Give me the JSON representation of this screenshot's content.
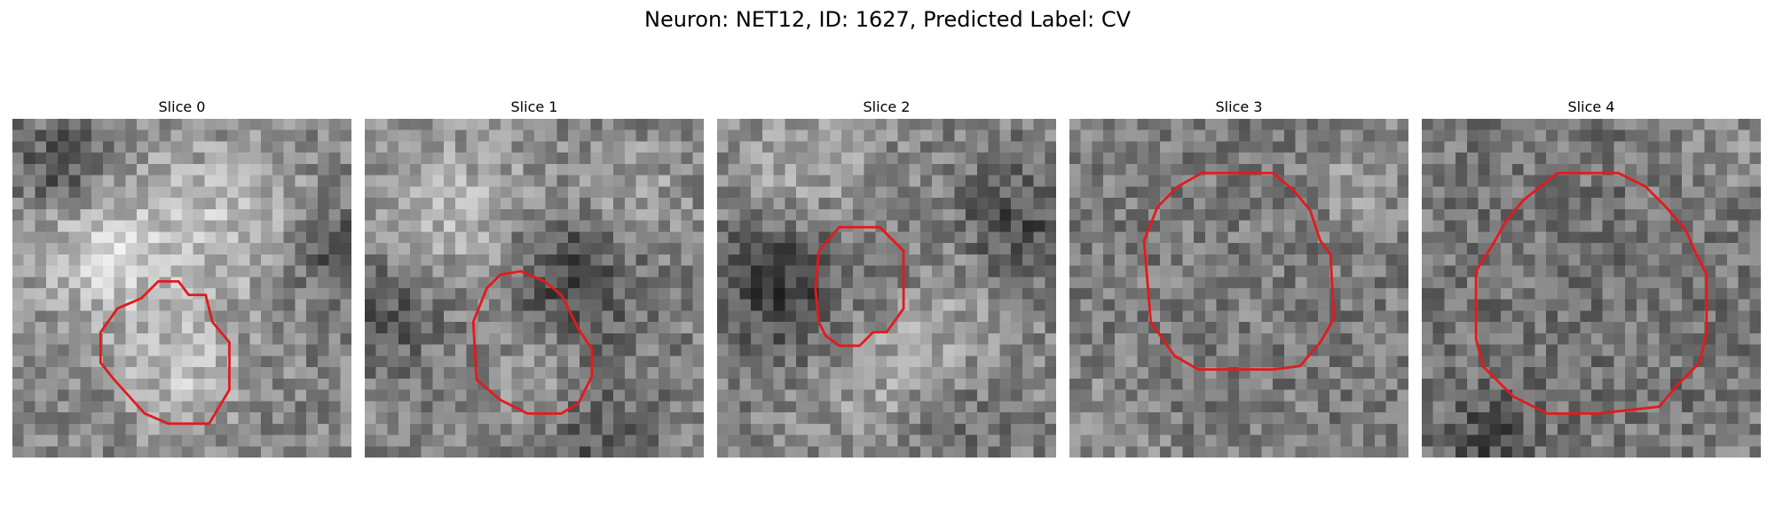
{
  "figure": {
    "title": "Neuron: NET12, ID: 1627, Predicted Label: CV"
  },
  "panels": [
    {
      "label": "Slice 0",
      "seed": 11,
      "blobs": [
        [
          0.25,
          0.4,
          0.16,
          70
        ],
        [
          0.62,
          0.3,
          0.18,
          55
        ],
        [
          0.5,
          0.75,
          0.13,
          60
        ],
        [
          0.15,
          0.15,
          0.1,
          -60
        ],
        [
          0.95,
          0.4,
          0.1,
          -50
        ]
      ],
      "contour": [
        [
          0.43,
          0.48
        ],
        [
          0.49,
          0.48
        ],
        [
          0.52,
          0.52
        ],
        [
          0.57,
          0.52
        ],
        [
          0.59,
          0.6
        ],
        [
          0.64,
          0.66
        ],
        [
          0.64,
          0.8
        ],
        [
          0.58,
          0.9
        ],
        [
          0.46,
          0.9
        ],
        [
          0.39,
          0.87
        ],
        [
          0.3,
          0.77
        ],
        [
          0.26,
          0.72
        ],
        [
          0.26,
          0.63
        ],
        [
          0.31,
          0.56
        ],
        [
          0.38,
          0.53
        ]
      ]
    },
    {
      "label": "Slice 1",
      "seed": 23,
      "blobs": [
        [
          0.3,
          0.3,
          0.18,
          55
        ],
        [
          0.78,
          0.25,
          0.12,
          40
        ],
        [
          0.6,
          0.45,
          0.16,
          -70
        ],
        [
          0.08,
          0.55,
          0.12,
          -50
        ],
        [
          0.5,
          0.75,
          0.1,
          35
        ],
        [
          0.7,
          0.95,
          0.12,
          -40
        ]
      ],
      "contour": [
        [
          0.4,
          0.46
        ],
        [
          0.46,
          0.45
        ],
        [
          0.53,
          0.48
        ],
        [
          0.58,
          0.52
        ],
        [
          0.63,
          0.62
        ],
        [
          0.67,
          0.68
        ],
        [
          0.67,
          0.76
        ],
        [
          0.63,
          0.84
        ],
        [
          0.58,
          0.87
        ],
        [
          0.48,
          0.87
        ],
        [
          0.4,
          0.83
        ],
        [
          0.33,
          0.77
        ],
        [
          0.32,
          0.6
        ],
        [
          0.36,
          0.5
        ]
      ]
    },
    {
      "label": "Slice 2",
      "seed": 37,
      "blobs": [
        [
          0.2,
          0.5,
          0.15,
          -75
        ],
        [
          0.55,
          0.7,
          0.2,
          45
        ],
        [
          0.88,
          0.3,
          0.12,
          -55
        ],
        [
          0.25,
          0.15,
          0.14,
          40
        ],
        [
          0.7,
          0.9,
          0.12,
          -40
        ],
        [
          0.5,
          0.45,
          0.08,
          -30
        ]
      ],
      "contour": [
        [
          0.36,
          0.32
        ],
        [
          0.48,
          0.32
        ],
        [
          0.55,
          0.39
        ],
        [
          0.55,
          0.56
        ],
        [
          0.5,
          0.63
        ],
        [
          0.46,
          0.63
        ],
        [
          0.42,
          0.67
        ],
        [
          0.36,
          0.67
        ],
        [
          0.32,
          0.64
        ],
        [
          0.3,
          0.6
        ],
        [
          0.29,
          0.5
        ],
        [
          0.3,
          0.39
        ]
      ]
    },
    {
      "label": "Slice 3",
      "seed": 53,
      "blobs": [
        [
          0.45,
          0.5,
          0.25,
          30
        ],
        [
          0.45,
          0.5,
          0.33,
          -35
        ],
        [
          0.85,
          0.2,
          0.1,
          30
        ],
        [
          0.1,
          0.9,
          0.12,
          25
        ]
      ],
      "contour": [
        [
          0.39,
          0.16
        ],
        [
          0.6,
          0.16
        ],
        [
          0.66,
          0.21
        ],
        [
          0.71,
          0.27
        ],
        [
          0.74,
          0.36
        ],
        [
          0.77,
          0.4
        ],
        [
          0.78,
          0.59
        ],
        [
          0.74,
          0.66
        ],
        [
          0.68,
          0.73
        ],
        [
          0.6,
          0.74
        ],
        [
          0.38,
          0.74
        ],
        [
          0.31,
          0.7
        ],
        [
          0.24,
          0.6
        ],
        [
          0.22,
          0.36
        ],
        [
          0.26,
          0.26
        ],
        [
          0.32,
          0.2
        ]
      ]
    },
    {
      "label": "Slice 4",
      "seed": 71,
      "blobs": [
        [
          0.5,
          0.5,
          0.3,
          15
        ],
        [
          0.5,
          0.5,
          0.42,
          -30
        ],
        [
          0.2,
          0.95,
          0.1,
          -45
        ],
        [
          0.9,
          0.1,
          0.1,
          25
        ]
      ],
      "contour": [
        [
          0.4,
          0.16
        ],
        [
          0.58,
          0.16
        ],
        [
          0.66,
          0.2
        ],
        [
          0.72,
          0.26
        ],
        [
          0.78,
          0.33
        ],
        [
          0.8,
          0.38
        ],
        [
          0.84,
          0.46
        ],
        [
          0.84,
          0.63
        ],
        [
          0.82,
          0.72
        ],
        [
          0.76,
          0.78
        ],
        [
          0.7,
          0.85
        ],
        [
          0.52,
          0.87
        ],
        [
          0.37,
          0.87
        ],
        [
          0.27,
          0.82
        ],
        [
          0.18,
          0.73
        ],
        [
          0.16,
          0.65
        ],
        [
          0.16,
          0.45
        ],
        [
          0.21,
          0.37
        ],
        [
          0.25,
          0.3
        ],
        [
          0.3,
          0.24
        ]
      ]
    }
  ],
  "colors": {
    "contour": "#e41a1c"
  }
}
